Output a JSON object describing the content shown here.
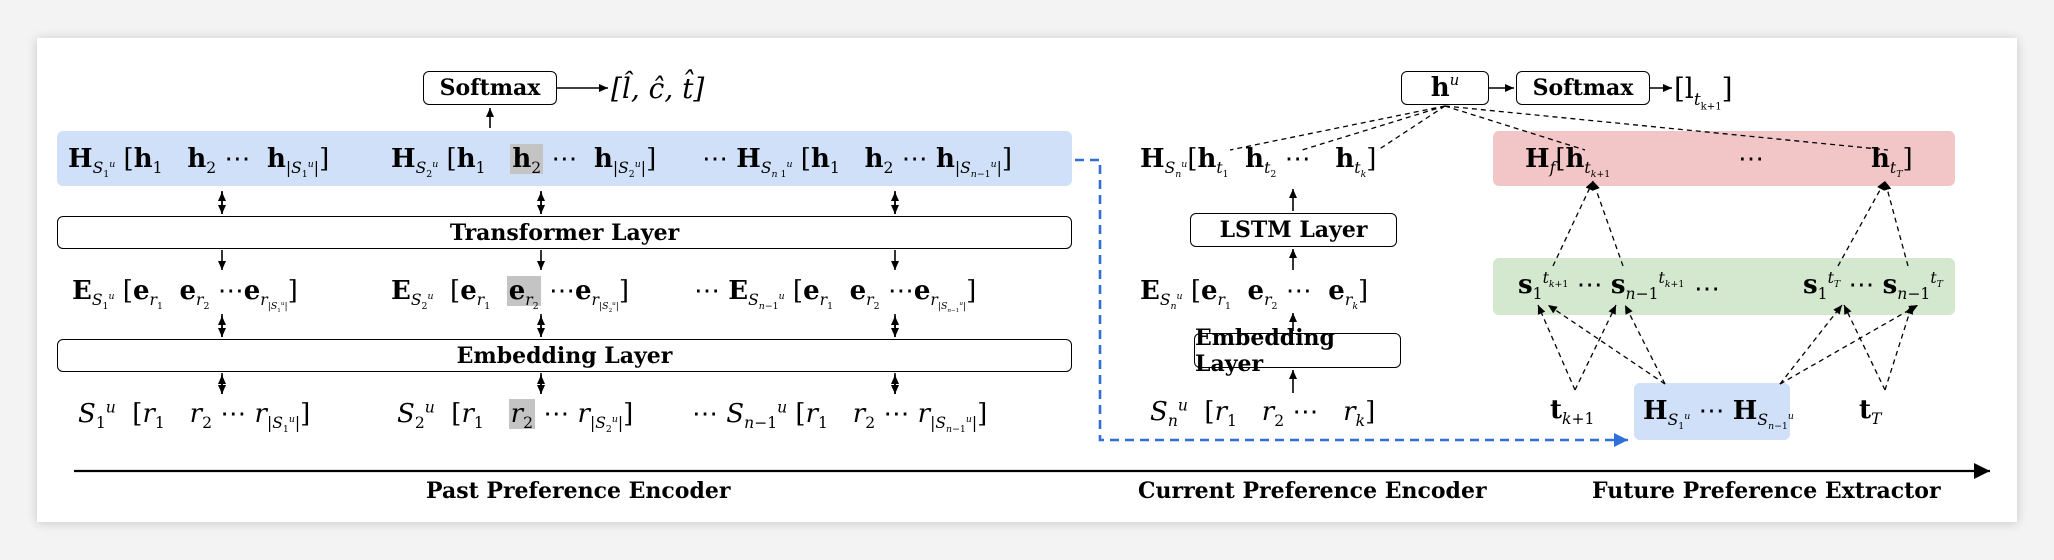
{
  "boxes": {
    "softmax_left": "Softmax",
    "transformer": "Transformer Layer",
    "embedding_left": "Embedding Layer",
    "lstm": "LSTM Layer",
    "embedding_mid": "Embedding Layer",
    "softmax_right": "Softmax"
  },
  "outputs": {
    "left": "[l̂, ĉ, t̂]",
    "right_prefix": "[l",
    "right_sub": "t",
    "right_subsub": "k+1",
    "right_suffix": "]",
    "hu": "h",
    "hu_sup": "u"
  },
  "sections": {
    "past": "Past Preference Encoder",
    "current": "Current Preference Encoder",
    "future": "Future Preference Extractor"
  },
  "colors": {
    "blue_band": "#cfe0f8",
    "red_band": "#f2c6c6",
    "green_band": "#d3e8cf",
    "dashed_arrow": "#2f6fd6"
  }
}
